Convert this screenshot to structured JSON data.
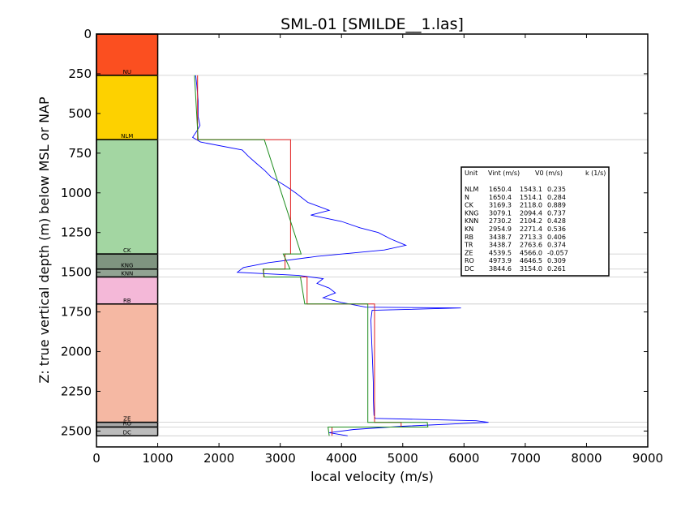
{
  "chart_data": {
    "type": "line",
    "title": "SML-01 [SMILDE__1.las]",
    "xlabel": "local velocity (m/s)",
    "ylabel": "Z: true vertical depth (m) below MSL or NAP",
    "xlim": [
      0,
      9000
    ],
    "ylim": [
      2600,
      0
    ],
    "y_inverted": true,
    "x_ticks": [
      "0",
      "1000",
      "2000",
      "3000",
      "4000",
      "5000",
      "6000",
      "7000",
      "8000",
      "9000"
    ],
    "y_ticks": [
      "0",
      "250",
      "500",
      "750",
      "1000",
      "1250",
      "1500",
      "1750",
      "2000",
      "2250",
      "2500"
    ],
    "x_tick_values": [
      0,
      1000,
      2000,
      3000,
      4000,
      5000,
      6000,
      7000,
      8000,
      9000
    ],
    "y_tick_values": [
      0,
      250,
      500,
      750,
      1000,
      1250,
      1500,
      1750,
      2000,
      2250,
      2500
    ],
    "strat_column": {
      "x_range": [
        0,
        1000
      ],
      "units": [
        {
          "name": "NU",
          "top": 0,
          "base": 260,
          "color": "#fb4f20"
        },
        {
          "name": "NLM",
          "top": 260,
          "base": 665,
          "color": "#fdd100"
        },
        {
          "name": "CK",
          "top": 665,
          "base": 1385,
          "color": "#a3d6a2"
        },
        {
          "name": "KNG",
          "top": 1385,
          "base": 1480,
          "color": "#7f9480"
        },
        {
          "name": "KNN",
          "top": 1480,
          "base": 1530,
          "color": "#91a392"
        },
        {
          "name": "RB",
          "top": 1530,
          "base": 1700,
          "color": "#f4b8d8"
        },
        {
          "name": "ZE",
          "top": 1700,
          "base": 2445,
          "color": "#f5b8a3"
        },
        {
          "name": "RO",
          "top": 2445,
          "base": 2475,
          "color": "#a8a8a8"
        },
        {
          "name": "DC",
          "top": 2475,
          "base": 2530,
          "color": "#bcbcbc"
        }
      ]
    },
    "boundary_depths": [
      260,
      665,
      1385,
      1480,
      1530,
      1700,
      2445,
      2475,
      2530
    ],
    "series": [
      {
        "name": "",
        "color": "#0000ff",
        "points": [
          [
            1620,
            260
          ],
          [
            1640,
            330
          ],
          [
            1660,
            420
          ],
          [
            1660,
            520
          ],
          [
            1690,
            575
          ],
          [
            1640,
            610
          ],
          [
            1570,
            650
          ],
          [
            1700,
            680
          ],
          [
            2380,
            730
          ],
          [
            2480,
            770
          ],
          [
            2600,
            810
          ],
          [
            2750,
            860
          ],
          [
            2850,
            900
          ],
          [
            3100,
            960
          ],
          [
            3250,
            1000
          ],
          [
            3450,
            1060
          ],
          [
            3800,
            1110
          ],
          [
            3500,
            1140
          ],
          [
            4000,
            1180
          ],
          [
            4300,
            1220
          ],
          [
            4600,
            1250
          ],
          [
            4800,
            1290
          ],
          [
            5050,
            1330
          ],
          [
            4700,
            1360
          ],
          [
            3600,
            1400
          ],
          [
            2800,
            1440
          ],
          [
            2400,
            1470
          ],
          [
            2300,
            1500
          ],
          [
            3300,
            1520
          ],
          [
            3700,
            1540
          ],
          [
            3600,
            1570
          ],
          [
            3800,
            1600
          ],
          [
            3900,
            1630
          ],
          [
            3700,
            1660
          ],
          [
            4000,
            1690
          ],
          [
            4400,
            1720
          ],
          [
            5950,
            1725
          ],
          [
            4500,
            1740
          ],
          [
            4480,
            1800
          ],
          [
            4490,
            1900
          ],
          [
            4500,
            2000
          ],
          [
            4510,
            2100
          ],
          [
            4520,
            2200
          ],
          [
            4520,
            2300
          ],
          [
            4530,
            2400
          ],
          [
            4550,
            2420
          ],
          [
            6200,
            2435
          ],
          [
            6400,
            2445
          ],
          [
            5000,
            2470
          ],
          [
            4200,
            2490
          ],
          [
            3800,
            2510
          ],
          [
            4100,
            2530
          ]
        ]
      },
      {
        "name": "",
        "color": "#e11f1f",
        "points": [
          [
            1650,
            260
          ],
          [
            1650,
            665
          ],
          [
            3169,
            665
          ],
          [
            3169,
            1385
          ],
          [
            3079,
            1385
          ],
          [
            3079,
            1480
          ],
          [
            2730,
            1480
          ],
          [
            2730,
            1530
          ],
          [
            3439,
            1530
          ],
          [
            3439,
            1700
          ],
          [
            4540,
            1700
          ],
          [
            4540,
            2445
          ],
          [
            4974,
            2445
          ],
          [
            4974,
            2475
          ],
          [
            3845,
            2475
          ],
          [
            3845,
            2530
          ]
        ]
      },
      {
        "name": "",
        "color": "#1d8c1d",
        "points": [
          [
            1600,
            260
          ],
          [
            1660,
            665
          ],
          [
            2740,
            665
          ],
          [
            3340,
            1385
          ],
          [
            3050,
            1385
          ],
          [
            3160,
            1480
          ],
          [
            2720,
            1480
          ],
          [
            2740,
            1530
          ],
          [
            3330,
            1530
          ],
          [
            3400,
            1700
          ],
          [
            4430,
            1700
          ],
          [
            4430,
            2445
          ],
          [
            5400,
            2445
          ],
          [
            5410,
            2475
          ],
          [
            3780,
            2475
          ],
          [
            3800,
            2530
          ]
        ]
      }
    ],
    "table": {
      "header": [
        "Unit",
        "Vint (m/s)",
        "V0 (m/s)",
        "k (1/s)"
      ],
      "rows": [
        [
          "NLM",
          "1650.4",
          "1543.1",
          "0.235"
        ],
        [
          "N",
          "1650.4",
          "1514.1",
          "0.284"
        ],
        [
          "CK",
          "3169.3",
          "2118.0",
          "0.889"
        ],
        [
          "KNG",
          "3079.1",
          "2094.4",
          "0.737"
        ],
        [
          "KNN",
          "2730.2",
          "2104.2",
          "0.428"
        ],
        [
          "KN",
          "2954.9",
          "2271.4",
          "0.536"
        ],
        [
          "RB",
          "3438.7",
          "2713.3",
          "0.406"
        ],
        [
          "TR",
          "3438.7",
          "2763.6",
          "0.374"
        ],
        [
          "ZE",
          "4539.5",
          "4566.0",
          "-0.057"
        ],
        [
          "RO",
          "4973.9",
          "4646.5",
          "0.309"
        ],
        [
          "DC",
          "3844.6",
          "3154.0",
          "0.261"
        ]
      ]
    },
    "grid": false
  }
}
